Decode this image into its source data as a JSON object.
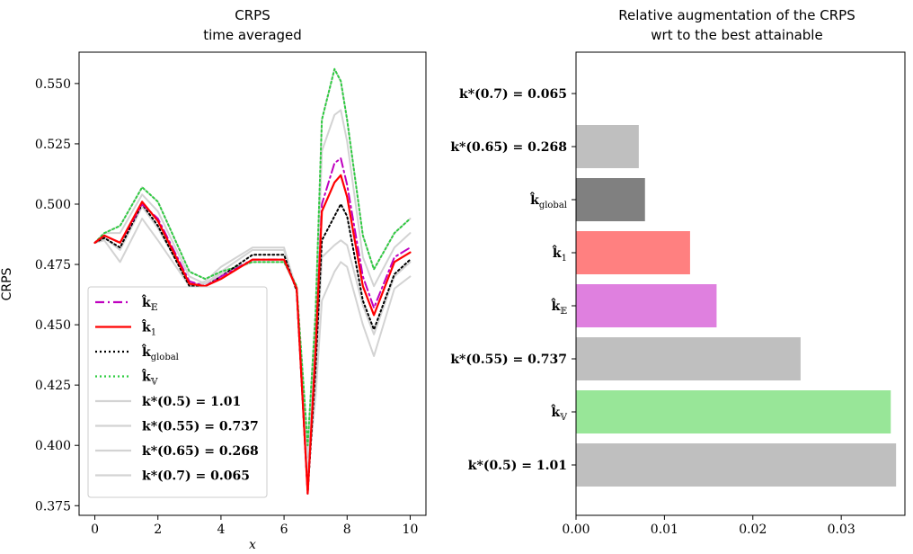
{
  "chart_data": [
    {
      "type": "line",
      "title": "CRPS",
      "subtitle": "time averaged",
      "xlabel": "x",
      "ylabel": "CRPS",
      "xlim": [
        -0.5,
        10.5
      ],
      "ylim": [
        0.371,
        0.563
      ],
      "xticks": [
        0,
        2,
        4,
        6,
        8,
        10
      ],
      "yticks": [
        0.375,
        0.4,
        0.425,
        0.45,
        0.475,
        0.5,
        0.525,
        0.55
      ],
      "ytick_labels": [
        "0.375",
        "0.400",
        "0.425",
        "0.450",
        "0.475",
        "0.500",
        "0.525",
        "0.550"
      ],
      "legend_position": "lower-left",
      "series": [
        {
          "name": "k̂_𝔼",
          "color": "#bf00bf",
          "style": "dashdot",
          "x": [
            0,
            0.3,
            0.8,
            1.5,
            2,
            3,
            3.5,
            4,
            5,
            6,
            6.4,
            6.75,
            7,
            7.2,
            7.6,
            7.8,
            8,
            8.5,
            8.85,
            9.5,
            10
          ],
          "y": [
            0.484,
            0.487,
            0.484,
            0.5,
            0.494,
            0.468,
            0.466,
            0.47,
            0.477,
            0.477,
            0.465,
            0.38,
            0.44,
            0.5,
            0.517,
            0.519,
            0.508,
            0.47,
            0.457,
            0.478,
            0.482
          ]
        },
        {
          "name": "k̂_1",
          "color": "#ff0000",
          "style": "solid",
          "x": [
            0,
            0.3,
            0.8,
            1.5,
            2,
            3,
            3.5,
            4,
            5,
            6,
            6.4,
            6.75,
            7,
            7.2,
            7.6,
            7.8,
            8,
            8.5,
            8.85,
            9.5,
            10
          ],
          "y": [
            0.484,
            0.487,
            0.484,
            0.501,
            0.493,
            0.467,
            0.466,
            0.469,
            0.477,
            0.477,
            0.465,
            0.38,
            0.44,
            0.497,
            0.509,
            0.512,
            0.503,
            0.466,
            0.454,
            0.476,
            0.48
          ]
        },
        {
          "name": "k̂_global",
          "color": "#000000",
          "style": "dotted",
          "x": [
            0,
            0.3,
            0.8,
            1.5,
            2,
            3,
            3.5,
            4,
            5,
            6,
            6.4,
            6.75,
            7,
            7.2,
            7.6,
            7.8,
            8,
            8.5,
            8.85,
            9.5,
            10
          ],
          "y": [
            0.484,
            0.486,
            0.482,
            0.5,
            0.491,
            0.466,
            0.466,
            0.47,
            0.479,
            0.479,
            0.464,
            0.38,
            0.432,
            0.485,
            0.495,
            0.5,
            0.495,
            0.46,
            0.448,
            0.471,
            0.477
          ]
        },
        {
          "name": "k̂_𝕍",
          "color": "#2ecc40",
          "style": "dotted",
          "x": [
            0,
            0.3,
            0.8,
            1.5,
            2,
            3,
            3.5,
            4,
            5,
            6,
            6.4,
            6.75,
            7,
            7.2,
            7.6,
            7.8,
            8,
            8.5,
            8.85,
            9.5,
            10
          ],
          "y": [
            0.484,
            0.488,
            0.491,
            0.507,
            0.501,
            0.472,
            0.469,
            0.472,
            0.476,
            0.476,
            0.466,
            0.4,
            0.455,
            0.535,
            0.556,
            0.551,
            0.535,
            0.487,
            0.473,
            0.488,
            0.494
          ]
        },
        {
          "name": "k*(0.5) = 1.01",
          "color": "#d3d3d3",
          "style": "solid",
          "x": [
            0,
            0.3,
            0.8,
            1.5,
            2,
            3,
            3.5,
            4,
            5,
            6,
            6.4,
            6.75,
            7,
            7.2,
            7.6,
            7.8,
            8,
            8.5,
            8.85,
            9.5,
            10
          ],
          "y": [
            0.484,
            0.488,
            0.491,
            0.507,
            0.501,
            0.472,
            0.469,
            0.472,
            0.476,
            0.476,
            0.466,
            0.4,
            0.455,
            0.535,
            0.556,
            0.551,
            0.535,
            0.487,
            0.473,
            0.488,
            0.494
          ]
        },
        {
          "name": "k*(0.55) = 0.737",
          "color": "#d3d3d3",
          "style": "solid",
          "x": [
            0,
            0.3,
            0.8,
            1.5,
            2,
            3,
            3.5,
            4,
            5,
            6,
            6.4,
            6.75,
            7,
            7.2,
            7.6,
            7.8,
            8,
            8.5,
            8.85,
            9.5,
            10
          ],
          "y": [
            0.484,
            0.488,
            0.488,
            0.504,
            0.497,
            0.47,
            0.467,
            0.471,
            0.476,
            0.476,
            0.465,
            0.395,
            0.448,
            0.522,
            0.537,
            0.539,
            0.526,
            0.478,
            0.466,
            0.482,
            0.488
          ]
        },
        {
          "name": "k*(0.65) = 0.268",
          "color": "#d3d3d3",
          "style": "solid",
          "x": [
            0,
            0.3,
            0.8,
            1.5,
            2,
            3,
            3.5,
            4,
            5,
            6,
            6.4,
            6.75,
            7,
            7.2,
            7.6,
            7.8,
            8,
            8.5,
            8.85,
            9.5,
            10
          ],
          "y": [
            0.484,
            0.486,
            0.481,
            0.499,
            0.49,
            0.467,
            0.467,
            0.472,
            0.481,
            0.481,
            0.465,
            0.385,
            0.428,
            0.478,
            0.483,
            0.485,
            0.483,
            0.458,
            0.446,
            0.47,
            0.476
          ]
        },
        {
          "name": "k*(0.7) = 0.065",
          "color": "#d3d3d3",
          "style": "solid",
          "x": [
            0,
            0.3,
            0.8,
            1.5,
            2,
            3,
            3.5,
            4,
            5,
            6,
            6.4,
            6.75,
            7,
            7.2,
            7.6,
            7.8,
            8,
            8.5,
            8.85,
            9.5,
            10
          ],
          "y": [
            0.484,
            0.485,
            0.476,
            0.494,
            0.485,
            0.466,
            0.468,
            0.474,
            0.482,
            0.482,
            0.464,
            0.388,
            0.42,
            0.46,
            0.472,
            0.476,
            0.474,
            0.45,
            0.437,
            0.465,
            0.47
          ]
        }
      ],
      "legend": [
        {
          "label": "k̂",
          "sub": "𝔼",
          "color": "#bf00bf",
          "style": "dashdot"
        },
        {
          "label": "k̂",
          "sub": "1",
          "color": "#ff0000",
          "style": "solid"
        },
        {
          "label": "k̂",
          "sub": "global",
          "color": "#000000",
          "style": "dotted"
        },
        {
          "label": "k̂",
          "sub": "𝕍",
          "color": "#2ecc40",
          "style": "dotted"
        },
        {
          "label": "k*(0.5) = 1.01",
          "sub": "",
          "color": "#d3d3d3",
          "style": "solid"
        },
        {
          "label": "k*(0.55) = 0.737",
          "sub": "",
          "color": "#d3d3d3",
          "style": "solid"
        },
        {
          "label": "k*(0.65) = 0.268",
          "sub": "",
          "color": "#d3d3d3",
          "style": "solid"
        },
        {
          "label": "k*(0.7) = 0.065",
          "sub": "",
          "color": "#d3d3d3",
          "style": "solid"
        }
      ]
    },
    {
      "type": "bar",
      "orientation": "horizontal",
      "title": "Relative augmentation of the CRPS",
      "subtitle": "wrt to the best attainable",
      "xlim": [
        0,
        0.0372
      ],
      "xticks": [
        0.0,
        0.01,
        0.02,
        0.03
      ],
      "xtick_labels": [
        "0.00",
        "0.01",
        "0.02",
        "0.03"
      ],
      "categories": [
        {
          "label": "k*(0.7) = 0.065",
          "sub": ""
        },
        {
          "label": "k*(0.65) = 0.268",
          "sub": ""
        },
        {
          "label": "k̂",
          "sub": "global"
        },
        {
          "label": "k̂",
          "sub": "1"
        },
        {
          "label": "k̂",
          "sub": "𝔼"
        },
        {
          "label": "k*(0.55) = 0.737",
          "sub": ""
        },
        {
          "label": "k̂",
          "sub": "𝕍"
        },
        {
          "label": "k*(0.5) = 1.01",
          "sub": ""
        }
      ],
      "values": [
        0.0,
        0.0071,
        0.0078,
        0.0129,
        0.0159,
        0.0254,
        0.0356,
        0.0362
      ],
      "colors": [
        "#bfbfbf",
        "#bfbfbf",
        "#808080",
        "#ff8080",
        "#df80df",
        "#bfbfbf",
        "#98e698",
        "#bfbfbf"
      ]
    }
  ]
}
